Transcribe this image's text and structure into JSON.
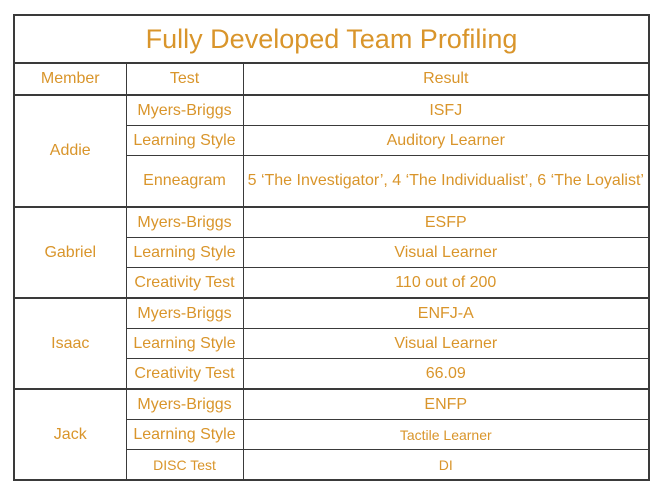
{
  "title": "Fully Developed Team Profiling",
  "headers": {
    "member": "Member",
    "test": "Test",
    "result": "Result"
  },
  "members": [
    {
      "name": "Addie",
      "rows": [
        {
          "test": "Myers-Briggs",
          "result": "ISFJ"
        },
        {
          "test": "Learning Style",
          "result": "Auditory Learner"
        },
        {
          "test": "Enneagram",
          "result": "5 ‘The Investigator’, 4 ‘The Individualist’, 6 ‘The Loyalist’"
        }
      ]
    },
    {
      "name": "Gabriel",
      "rows": [
        {
          "test": "Myers-Briggs",
          "result": "ESFP"
        },
        {
          "test": "Learning Style",
          "result": "Visual Learner"
        },
        {
          "test": "Creativity Test",
          "result": "110 out of 200"
        }
      ]
    },
    {
      "name": "Isaac",
      "rows": [
        {
          "test": "Myers-Briggs",
          "result": "ENFJ-A"
        },
        {
          "test": "Learning Style",
          "result": "Visual Learner"
        },
        {
          "test": "Creativity Test",
          "result": "66.09"
        }
      ]
    },
    {
      "name": "Jack",
      "rows": [
        {
          "test": "Myers-Briggs",
          "result": "ENFP"
        },
        {
          "test": "Learning Style",
          "result": "Tactile Learner"
        },
        {
          "test": "DISC Test",
          "result": "DI"
        }
      ]
    }
  ],
  "colors": {
    "text": "#d9952b",
    "border": "#3a3a3a"
  }
}
